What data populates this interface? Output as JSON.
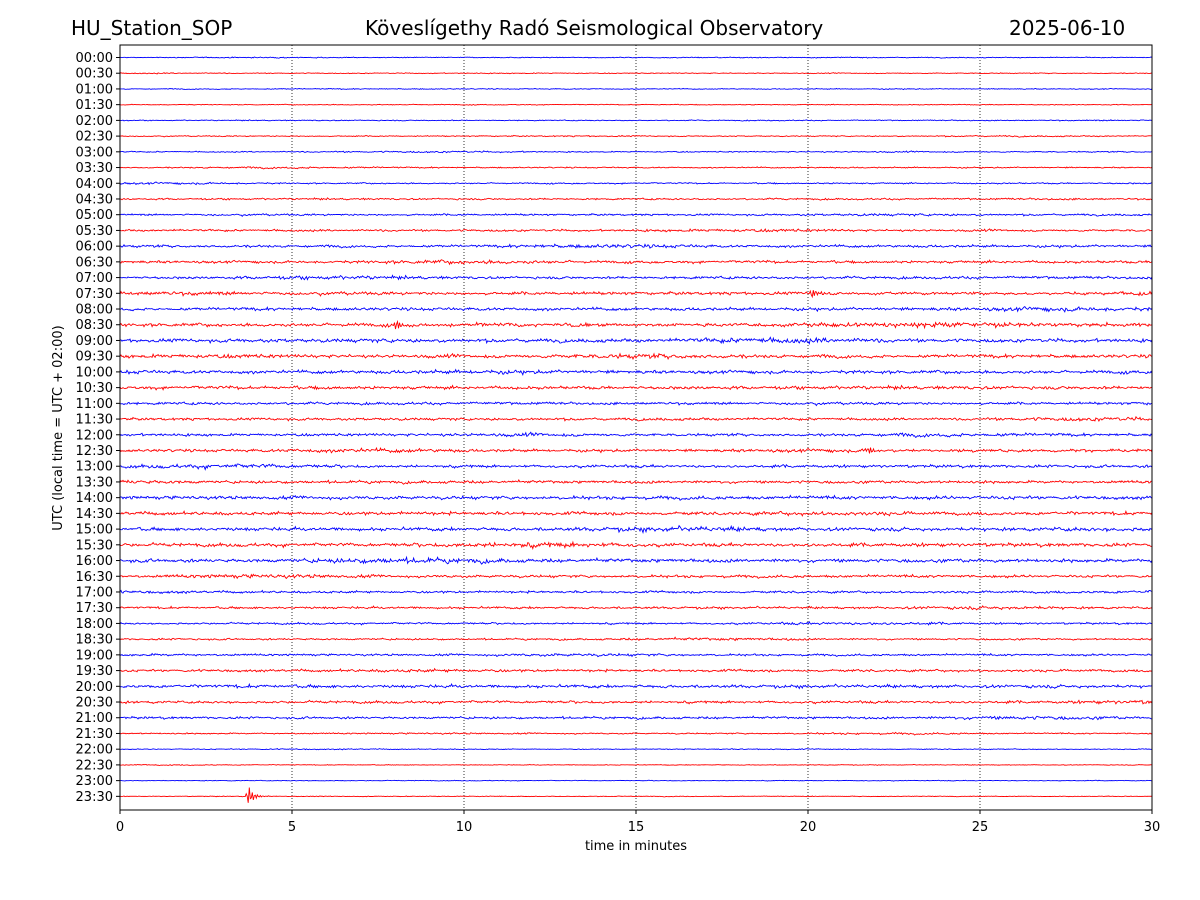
{
  "header": {
    "station": "HU_Station_SOP",
    "observatory": "Köveslígethy Radó Seismological Observatory",
    "date": "2025-06-10"
  },
  "chart_data": {
    "type": "line",
    "title": "Köveslígethy Radó Seismological Observatory",
    "xlabel": "time in minutes",
    "ylabel": "UTC (local time = UTC + 02:00)",
    "xlim": [
      0,
      30
    ],
    "x_ticks": [
      "0",
      "5",
      "10",
      "15",
      "20",
      "25",
      "30"
    ],
    "grid": "vertical dotted lines at 5-minute ticks",
    "colors": {
      "even": "#0000ff",
      "odd": "#ff0000"
    },
    "rows": [
      {
        "label": "00:00",
        "amp": 0.1
      },
      {
        "label": "00:30",
        "amp": 0.1
      },
      {
        "label": "01:00",
        "amp": 0.11
      },
      {
        "label": "01:30",
        "amp": 0.1
      },
      {
        "label": "02:00",
        "amp": 0.11
      },
      {
        "label": "02:30",
        "amp": 0.12
      },
      {
        "label": "03:00",
        "amp": 0.14
      },
      {
        "label": "03:30",
        "amp": 0.15
      },
      {
        "label": "04:00",
        "amp": 0.17
      },
      {
        "label": "04:30",
        "amp": 0.2
      },
      {
        "label": "05:00",
        "amp": 0.22
      },
      {
        "label": "05:30",
        "amp": 0.25
      },
      {
        "label": "06:00",
        "amp": 0.3
      },
      {
        "label": "06:30",
        "amp": 0.32
      },
      {
        "label": "07:00",
        "amp": 0.3
      },
      {
        "label": "07:30",
        "amp": 0.36
      },
      {
        "label": "08:00",
        "amp": 0.36
      },
      {
        "label": "08:30",
        "amp": 0.42
      },
      {
        "label": "09:00",
        "amp": 0.42
      },
      {
        "label": "09:30",
        "amp": 0.4
      },
      {
        "label": "10:00",
        "amp": 0.4
      },
      {
        "label": "10:30",
        "amp": 0.38
      },
      {
        "label": "11:00",
        "amp": 0.3
      },
      {
        "label": "11:30",
        "amp": 0.3
      },
      {
        "label": "12:00",
        "amp": 0.32
      },
      {
        "label": "12:30",
        "amp": 0.34
      },
      {
        "label": "13:00",
        "amp": 0.32
      },
      {
        "label": "13:30",
        "amp": 0.32
      },
      {
        "label": "14:00",
        "amp": 0.4
      },
      {
        "label": "14:30",
        "amp": 0.4
      },
      {
        "label": "15:00",
        "amp": 0.4
      },
      {
        "label": "15:30",
        "amp": 0.4
      },
      {
        "label": "16:00",
        "amp": 0.4
      },
      {
        "label": "16:30",
        "amp": 0.32
      },
      {
        "label": "17:00",
        "amp": 0.28
      },
      {
        "label": "17:30",
        "amp": 0.26
      },
      {
        "label": "18:00",
        "amp": 0.22
      },
      {
        "label": "18:30",
        "amp": 0.2
      },
      {
        "label": "19:00",
        "amp": 0.24
      },
      {
        "label": "19:30",
        "amp": 0.3
      },
      {
        "label": "20:00",
        "amp": 0.36
      },
      {
        "label": "20:30",
        "amp": 0.3
      },
      {
        "label": "21:00",
        "amp": 0.26
      },
      {
        "label": "21:30",
        "amp": 0.16
      },
      {
        "label": "22:00",
        "amp": 0.1
      },
      {
        "label": "22:30",
        "amp": 0.08
      },
      {
        "label": "23:00",
        "amp": 0.08
      },
      {
        "label": "23:30",
        "amp": 0.08
      }
    ],
    "events": [
      {
        "row": "23:30",
        "minute": 3.7,
        "amp": 1.4
      },
      {
        "row": "07:30",
        "minute": 20.1,
        "amp": 0.9
      },
      {
        "row": "08:30",
        "minute": 8.0,
        "amp": 0.7
      },
      {
        "row": "12:30",
        "minute": 21.7,
        "amp": 0.7
      }
    ]
  }
}
